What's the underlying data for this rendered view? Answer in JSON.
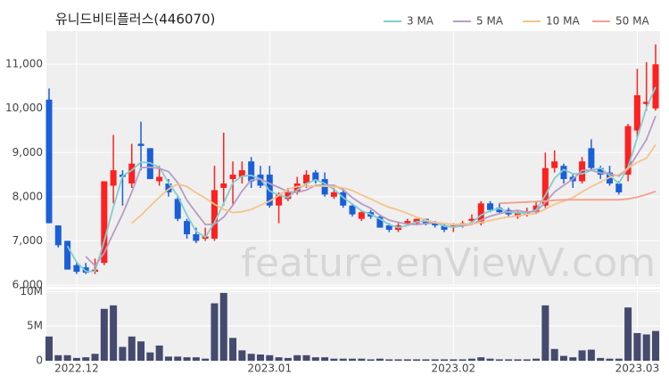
{
  "chart_data": {
    "type": "candlestick",
    "title": "유니드비티플러스(446070)",
    "watermark": "feature.enViewV.com",
    "categories": [
      null,
      null,
      null,
      "2022.12",
      null,
      null,
      null,
      null,
      null,
      null,
      null,
      null,
      null,
      null,
      null,
      null,
      null,
      null,
      null,
      null,
      null,
      null,
      null,
      null,
      "2023.01",
      null,
      null,
      null,
      null,
      null,
      null,
      null,
      null,
      null,
      null,
      null,
      null,
      null,
      null,
      null,
      null,
      null,
      null,
      null,
      "2023.02",
      null,
      null,
      null,
      null,
      null,
      null,
      null,
      null,
      null,
      null,
      null,
      null,
      null,
      null,
      null,
      null,
      null,
      null,
      null,
      "2023.03",
      null,
      null
    ],
    "open": [
      10200,
      7350,
      7000,
      6450,
      6400,
      6300,
      6500,
      8250,
      8500,
      8300,
      9200,
      9100,
      8350,
      8300,
      7950,
      7450,
      7150,
      7050,
      7050,
      8200,
      8400,
      8450,
      8800,
      8500,
      8500,
      7800,
      7950,
      8100,
      8300,
      8550,
      8400,
      8000,
      8100,
      7800,
      7500,
      7650,
      7550,
      7350,
      7250,
      7400,
      7400,
      7500,
      7400,
      7350,
      7300,
      7350,
      7450,
      7400,
      7850,
      7750,
      7700,
      7550,
      7600,
      7650,
      7800,
      8650,
      8700,
      8450,
      8350,
      9100,
      8650,
      8550,
      8300,
      8500,
      9500,
      10100,
      10000
    ],
    "high": [
      10450,
      7350,
      7000,
      6500,
      6500,
      6600,
      8350,
      9400,
      8600,
      9200,
      9700,
      9100,
      8700,
      8400,
      8000,
      7500,
      7300,
      7300,
      8700,
      9450,
      8800,
      8800,
      8900,
      8700,
      8700,
      8100,
      8200,
      8450,
      8600,
      8600,
      8550,
      8200,
      8150,
      7850,
      7700,
      7700,
      7600,
      7400,
      7400,
      7500,
      7500,
      7500,
      7450,
      7400,
      7400,
      7450,
      7600,
      7900,
      7900,
      7850,
      7750,
      7700,
      7750,
      7900,
      9000,
      9050,
      8750,
      8500,
      8900,
      9300,
      8700,
      8700,
      8350,
      9650,
      10900,
      11050,
      11450
    ],
    "low": [
      7400,
      6850,
      6350,
      6250,
      6250,
      6250,
      6450,
      7850,
      7800,
      8200,
      8600,
      8400,
      8250,
      8000,
      7450,
      7050,
      6950,
      7000,
      7000,
      7800,
      7800,
      8300,
      8200,
      8200,
      7750,
      7400,
      7900,
      8050,
      8200,
      8300,
      8000,
      7950,
      7750,
      7550,
      7450,
      7500,
      7300,
      7200,
      7200,
      7350,
      7350,
      7350,
      7300,
      7200,
      7200,
      7300,
      7400,
      7350,
      7650,
      7600,
      7550,
      7500,
      7550,
      7600,
      7750,
      8550,
      8300,
      8200,
      8300,
      8600,
      8400,
      8250,
      8050,
      8350,
      9350,
      9950,
      9950
    ],
    "close": [
      7400,
      6900,
      6350,
      6300,
      6280,
      6350,
      8350,
      8600,
      8450,
      8750,
      9150,
      8400,
      8450,
      8100,
      7500,
      7150,
      7000,
      7100,
      8150,
      8300,
      8500,
      8600,
      8350,
      8250,
      7800,
      8050,
      8100,
      8300,
      8500,
      8350,
      8050,
      8100,
      7800,
      7600,
      7650,
      7550,
      7300,
      7250,
      7350,
      7450,
      7500,
      7400,
      7350,
      7250,
      7350,
      7400,
      7500,
      7850,
      7700,
      7650,
      7600,
      7650,
      7650,
      7800,
      8650,
      8800,
      8400,
      8350,
      8800,
      8650,
      8500,
      8300,
      8100,
      9600,
      10300,
      10150,
      11000
    ],
    "up_color": "#ff2020",
    "down_color": "#1a5fd8",
    "ylim": [
      6000,
      11750
    ],
    "yticks": [
      {
        "value": 6000,
        "label": "6,000"
      },
      {
        "value": 7000,
        "label": "7,000"
      },
      {
        "value": 8000,
        "label": "8,000"
      },
      {
        "value": 9000,
        "label": "9,000"
      },
      {
        "value": 10000,
        "label": "10,000"
      },
      {
        "value": 11000,
        "label": "11,000"
      }
    ],
    "grid": true,
    "series": [
      {
        "name": "3 MA",
        "color": "#7fcfcf",
        "values": [
          null,
          null,
          6883,
          6517,
          6310,
          6310,
          6993,
          7767,
          8467,
          8600,
          8783,
          8767,
          8667,
          8317,
          8017,
          7583,
          7217,
          7083,
          7417,
          7850,
          8317,
          8467,
          8483,
          8400,
          8133,
          8033,
          7983,
          8150,
          8300,
          8383,
          8300,
          8167,
          7983,
          7833,
          7683,
          7600,
          7500,
          7367,
          7300,
          7350,
          7433,
          7450,
          7417,
          7333,
          7317,
          7333,
          7417,
          7583,
          7683,
          7733,
          7650,
          7633,
          7633,
          7700,
          8033,
          8417,
          8617,
          8517,
          8517,
          8600,
          8650,
          8483,
          8300,
          8667,
          9333,
          10017,
          10483
        ]
      },
      {
        "name": "5 MA",
        "color": "#b89cc4",
        "values": [
          null,
          null,
          null,
          null,
          6646,
          6436,
          6726,
          7176,
          7606,
          8100,
          8660,
          8670,
          8640,
          8570,
          8320,
          7920,
          7640,
          7370,
          7380,
          7540,
          7810,
          8130,
          8380,
          8400,
          8300,
          8210,
          8110,
          8100,
          8150,
          8260,
          8260,
          8260,
          8160,
          7980,
          7840,
          7740,
          7580,
          7470,
          7420,
          7380,
          7370,
          7390,
          7410,
          7390,
          7370,
          7350,
          7370,
          7470,
          7560,
          7620,
          7660,
          7690,
          7650,
          7670,
          7870,
          8110,
          8260,
          8400,
          8600,
          8600,
          8540,
          8520,
          8470,
          8630,
          8960,
          9290,
          9830
        ]
      },
      {
        "name": "10 MA",
        "color": "#f3c48c",
        "values": [
          null,
          null,
          null,
          null,
          null,
          null,
          null,
          null,
          null,
          7400,
          7580,
          7790,
          7990,
          8170,
          8290,
          8230,
          8090,
          7970,
          7830,
          7710,
          7640,
          7660,
          7710,
          7810,
          7900,
          8030,
          8170,
          8230,
          8250,
          8240,
          8240,
          8230,
          8200,
          8140,
          8040,
          7950,
          7850,
          7760,
          7700,
          7620,
          7540,
          7470,
          7420,
          7390,
          7370,
          7380,
          7380,
          7420,
          7460,
          7510,
          7540,
          7570,
          7600,
          7620,
          7720,
          7830,
          7900,
          7980,
          8110,
          8230,
          8330,
          8440,
          8500,
          8650,
          8780,
          8870,
          9180
        ]
      },
      {
        "name": "50 MA",
        "color": "#f2a08e",
        "values": [
          null,
          null,
          null,
          null,
          null,
          null,
          null,
          null,
          null,
          null,
          null,
          null,
          null,
          null,
          null,
          null,
          null,
          null,
          null,
          null,
          null,
          null,
          null,
          null,
          null,
          null,
          null,
          null,
          null,
          null,
          null,
          null,
          null,
          null,
          null,
          null,
          null,
          null,
          null,
          null,
          null,
          null,
          null,
          null,
          null,
          null,
          null,
          null,
          null,
          7850,
          7860,
          7870,
          7880,
          7890,
          7900,
          7920,
          7930,
          7930,
          7930,
          7930,
          7930,
          7930,
          7930,
          7950,
          7990,
          8050,
          8120
        ]
      }
    ],
    "volume": {
      "color": "#454a6e",
      "ylim": [
        0,
        10300000
      ],
      "yticks": [
        0,
        {
          "value": 5000000,
          "label": "5M"
        },
        {
          "value": 10000000,
          "label": "10M"
        }
      ],
      "values": [
        3500000,
        800000,
        800000,
        400000,
        500000,
        1000000,
        7500000,
        8000000,
        2000000,
        3500000,
        2800000,
        1200000,
        2200000,
        600000,
        600000,
        500000,
        500000,
        300000,
        8300000,
        9800000,
        3300000,
        1500000,
        1000000,
        900000,
        800000,
        500000,
        400000,
        800000,
        800000,
        500000,
        500000,
        300000,
        300000,
        300000,
        300000,
        200000,
        300000,
        200000,
        200000,
        200000,
        200000,
        200000,
        200000,
        200000,
        200000,
        200000,
        300000,
        500000,
        300000,
        200000,
        200000,
        200000,
        200000,
        300000,
        8000000,
        1700000,
        700000,
        500000,
        1500000,
        1600000,
        400000,
        300000,
        300000,
        7700000,
        4000000,
        3800000,
        4300000
      ]
    }
  }
}
